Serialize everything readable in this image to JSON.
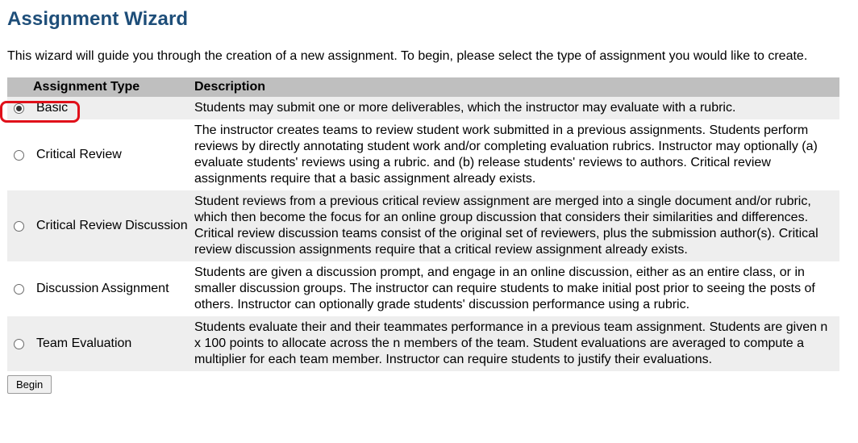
{
  "page": {
    "title": "Assignment Wizard",
    "intro": "This wizard will guide you through the creation of a new assignment. To begin, please select the type of assignment you would like to create."
  },
  "table": {
    "headers": {
      "type": "Assignment Type",
      "description": "Description"
    },
    "rows": [
      {
        "type": "Basic",
        "selected": true,
        "description": "Students may submit one or more deliverables, which the instructor may evaluate with a rubric."
      },
      {
        "type": "Critical Review",
        "selected": false,
        "description": "The instructor creates teams to review student work submitted in a previous assignments. Students perform reviews by directly annotating student work and/or completing evaluation rubrics. Instructor may optionally (a) evaluate students' reviews using a rubric. and (b) release students' reviews to authors. Critical review assignments require that a basic assignment already exists."
      },
      {
        "type": "Critical Review Discussion",
        "selected": false,
        "description": "Student reviews from a previous critical review assignment are merged into a single document and/or rubric, which then become the focus for an online group discussion that considers their similarities and differences. Critical review discussion teams consist of the original set of reviewers, plus the submission author(s). Critical review discussion assignments require that a critical review assignment already exists."
      },
      {
        "type": "Discussion Assignment",
        "selected": false,
        "description": "Students are given a discussion prompt, and engage in an online discussion, either as an entire class, or in smaller discussion groups. The instructor can require students to make initial post prior to seeing the posts of others. Instructor can optionally grade students' discussion performance using a rubric."
      },
      {
        "type": "Team Evaluation",
        "selected": false,
        "description": "Students evaluate their and their teammates performance in a previous team assignment. Students are given n x 100 points to allocate across the n members of the team. Student evaluations are averaged to compute a multiplier for each team member. Instructor can require students to justify their evaluations."
      }
    ]
  },
  "actions": {
    "begin_label": "Begin"
  },
  "colors": {
    "title": "#1e4e79",
    "header_bg": "#bfbfbf",
    "stripe_bg": "#eeeeee",
    "highlight": "#e0101a"
  }
}
